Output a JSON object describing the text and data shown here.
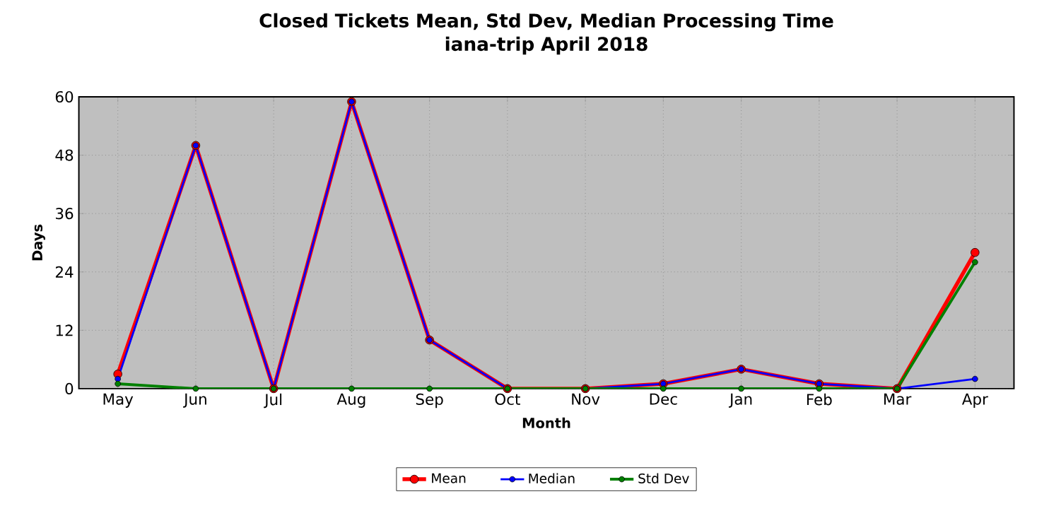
{
  "chart_data": {
    "type": "line",
    "title": "Closed Tickets Mean, Std Dev, Median Processing Time\niana-trip April 2018",
    "xlabel": "Month",
    "ylabel": "Days",
    "categories": [
      "May",
      "Jun",
      "Jul",
      "Aug",
      "Sep",
      "Oct",
      "Nov",
      "Dec",
      "Jan",
      "Feb",
      "Mar",
      "Apr"
    ],
    "series": [
      {
        "name": "Mean",
        "color": "#ff0000",
        "values": [
          3,
          50,
          0,
          59,
          10,
          0,
          0,
          1,
          4,
          1,
          0,
          28
        ]
      },
      {
        "name": "Median",
        "color": "#0000ff",
        "values": [
          2,
          50,
          0,
          59,
          10,
          0,
          0,
          1,
          4,
          1,
          0,
          2
        ]
      },
      {
        "name": "Std Dev",
        "color": "#008000",
        "values": [
          1,
          0,
          0,
          0,
          0,
          0,
          0,
          0,
          0,
          0,
          0,
          26
        ]
      }
    ],
    "ylim": [
      0,
      60
    ],
    "yticks": [
      0,
      12,
      24,
      36,
      48,
      60
    ],
    "grid": true,
    "legend": "bottom",
    "marker": "circle",
    "line_style": "solid"
  }
}
